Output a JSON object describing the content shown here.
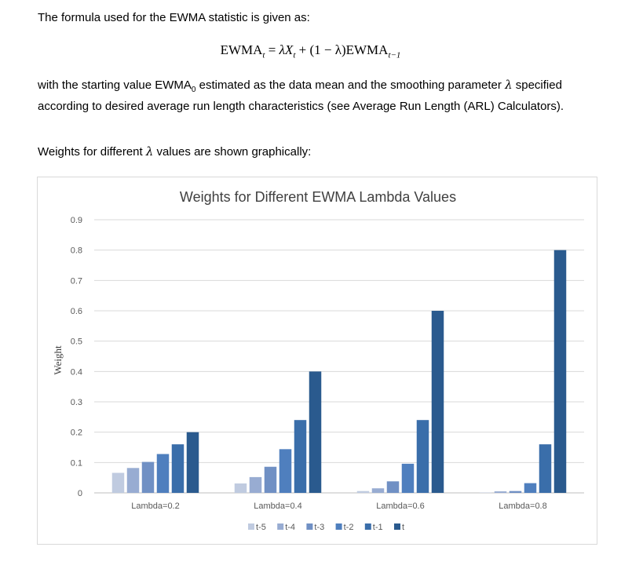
{
  "text": {
    "intro": "The formula used for the EWMA statistic is given as:",
    "formula": {
      "lhs": "EWMA",
      "lhs_sub": "t",
      "eq": " = ",
      "lambda1": "λX",
      "x_sub": "t",
      "middle": " + (1 − λ)EWMA",
      "rhs_sub": "t−1"
    },
    "desc_a": "with the starting value EWMA",
    "desc_sub": "0",
    "desc_b": " estimated as the data mean and the smoothing parameter ",
    "desc_lambda": "λ",
    "desc_c": " specified according to desired average run length characteristics (see Average Run Length (ARL) Calculators).",
    "weights_a": "Weights for different ",
    "weights_lambda": "λ",
    "weights_b": " values are shown graphically:"
  },
  "chart_data": {
    "type": "bar",
    "title": "Weights for Different EWMA Lambda Values",
    "ylabel": "Weight",
    "xlabel": "",
    "ylim": [
      0,
      0.9
    ],
    "yticks": [
      "0",
      "0.1",
      "0.2",
      "0.3",
      "0.4",
      "0.5",
      "0.6",
      "0.7",
      "0.8",
      "0.9"
    ],
    "categories": [
      "Lambda=0.2",
      "Lambda=0.4",
      "Lambda=0.6",
      "Lambda=0.8"
    ],
    "series": [
      {
        "name": "t-5",
        "color": "#c0cbe0",
        "values": [
          0.066,
          0.031,
          0.006,
          0.001
        ]
      },
      {
        "name": "t-4",
        "color": "#98acd2",
        "values": [
          0.082,
          0.052,
          0.015,
          0.005
        ]
      },
      {
        "name": "t-3",
        "color": "#7090c4",
        "values": [
          0.102,
          0.086,
          0.038,
          0.006
        ]
      },
      {
        "name": "t-2",
        "color": "#4f7fbe",
        "values": [
          0.128,
          0.144,
          0.096,
          0.032
        ]
      },
      {
        "name": "t-1",
        "color": "#3a6eaa",
        "values": [
          0.16,
          0.24,
          0.24,
          0.16
        ]
      },
      {
        "name": "t",
        "color": "#2a5a8e",
        "values": [
          0.2,
          0.4,
          0.6,
          0.8
        ]
      }
    ],
    "legend": "bottom",
    "grid": true
  }
}
